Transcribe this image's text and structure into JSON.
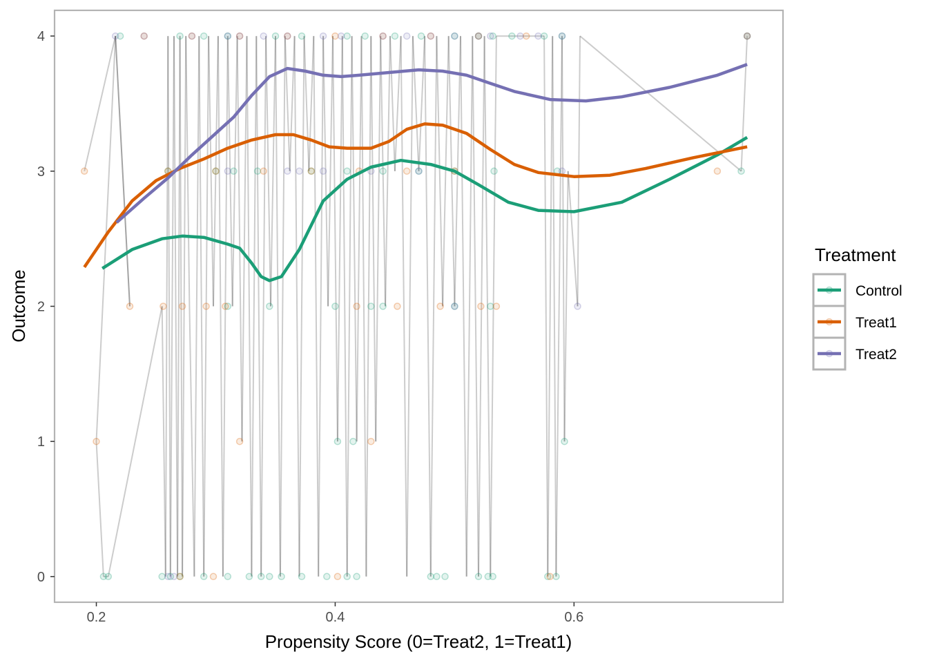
{
  "chart_data": {
    "type": "scatter",
    "title": "",
    "xlabel": "Propensity Score (0=Treat2, 1=Treat1)",
    "ylabel": "Outcome",
    "xlim": [
      0.165,
      0.775
    ],
    "ylim": [
      -0.19,
      4.19
    ],
    "x_ticks": [
      0.2,
      0.4,
      0.6
    ],
    "x_tick_labels": [
      "0.2",
      "0.4",
      "0.6"
    ],
    "y_ticks": [
      0,
      1,
      2,
      3,
      4
    ],
    "y_tick_labels": [
      "0",
      "1",
      "2",
      "3",
      "4"
    ],
    "grid": false,
    "legend": {
      "title": "Treatment",
      "position": "right",
      "entries": [
        "Control",
        "Treat1",
        "Treat2"
      ]
    },
    "colors": {
      "Control": "#1b9e77",
      "Treat1": "#d95f02",
      "Treat2": "#7570b3",
      "connector": "#000000",
      "frame": "#b3b3b3"
    },
    "series": [
      {
        "name": "Control",
        "smooth": [
          [
            0.205,
            2.28
          ],
          [
            0.23,
            2.42
          ],
          [
            0.255,
            2.5
          ],
          [
            0.272,
            2.52
          ],
          [
            0.29,
            2.51
          ],
          [
            0.31,
            2.46
          ],
          [
            0.32,
            2.43
          ],
          [
            0.33,
            2.32
          ],
          [
            0.338,
            2.22
          ],
          [
            0.345,
            2.19
          ],
          [
            0.355,
            2.22
          ],
          [
            0.37,
            2.42
          ],
          [
            0.39,
            2.78
          ],
          [
            0.41,
            2.94
          ],
          [
            0.43,
            3.03
          ],
          [
            0.455,
            3.08
          ],
          [
            0.48,
            3.05
          ],
          [
            0.5,
            3.0
          ],
          [
            0.52,
            2.9
          ],
          [
            0.545,
            2.77
          ],
          [
            0.57,
            2.71
          ],
          [
            0.6,
            2.7
          ],
          [
            0.64,
            2.77
          ],
          [
            0.68,
            2.94
          ],
          [
            0.72,
            3.12
          ],
          [
            0.745,
            3.25
          ]
        ],
        "points": [
          [
            0.206,
            0
          ],
          [
            0.21,
            0
          ],
          [
            0.255,
            0
          ],
          [
            0.262,
            0
          ],
          [
            0.27,
            0
          ],
          [
            0.29,
            0
          ],
          [
            0.31,
            0
          ],
          [
            0.328,
            0
          ],
          [
            0.338,
            0
          ],
          [
            0.345,
            0
          ],
          [
            0.355,
            0
          ],
          [
            0.372,
            0
          ],
          [
            0.393,
            0
          ],
          [
            0.41,
            0
          ],
          [
            0.418,
            0
          ],
          [
            0.48,
            0
          ],
          [
            0.485,
            0
          ],
          [
            0.492,
            0
          ],
          [
            0.52,
            0
          ],
          [
            0.528,
            0
          ],
          [
            0.532,
            0
          ],
          [
            0.578,
            0
          ],
          [
            0.585,
            0
          ],
          [
            0.22,
            4
          ],
          [
            0.27,
            4
          ],
          [
            0.29,
            4
          ],
          [
            0.31,
            4
          ],
          [
            0.35,
            4
          ],
          [
            0.372,
            4
          ],
          [
            0.41,
            4
          ],
          [
            0.425,
            4
          ],
          [
            0.45,
            4
          ],
          [
            0.472,
            4
          ],
          [
            0.5,
            4
          ],
          [
            0.52,
            4
          ],
          [
            0.532,
            4
          ],
          [
            0.548,
            4
          ],
          [
            0.575,
            4
          ],
          [
            0.59,
            4
          ],
          [
            0.745,
            4
          ],
          [
            0.26,
            3
          ],
          [
            0.3,
            3
          ],
          [
            0.315,
            3
          ],
          [
            0.335,
            3
          ],
          [
            0.38,
            3
          ],
          [
            0.41,
            3
          ],
          [
            0.44,
            3
          ],
          [
            0.47,
            3
          ],
          [
            0.5,
            3
          ],
          [
            0.533,
            3
          ],
          [
            0.586,
            3
          ],
          [
            0.74,
            3
          ],
          [
            0.31,
            2
          ],
          [
            0.345,
            2
          ],
          [
            0.4,
            2
          ],
          [
            0.43,
            2
          ],
          [
            0.44,
            2
          ],
          [
            0.5,
            2
          ],
          [
            0.53,
            2
          ],
          [
            0.402,
            1
          ],
          [
            0.415,
            1
          ],
          [
            0.592,
            1
          ]
        ]
      },
      {
        "name": "Treat1",
        "smooth": [
          [
            0.19,
            2.29
          ],
          [
            0.21,
            2.55
          ],
          [
            0.23,
            2.78
          ],
          [
            0.25,
            2.93
          ],
          [
            0.27,
            3.02
          ],
          [
            0.29,
            3.09
          ],
          [
            0.31,
            3.17
          ],
          [
            0.33,
            3.23
          ],
          [
            0.35,
            3.27
          ],
          [
            0.365,
            3.27
          ],
          [
            0.38,
            3.23
          ],
          [
            0.395,
            3.18
          ],
          [
            0.41,
            3.17
          ],
          [
            0.43,
            3.17
          ],
          [
            0.445,
            3.22
          ],
          [
            0.46,
            3.31
          ],
          [
            0.475,
            3.35
          ],
          [
            0.49,
            3.34
          ],
          [
            0.51,
            3.28
          ],
          [
            0.53,
            3.16
          ],
          [
            0.55,
            3.05
          ],
          [
            0.57,
            2.99
          ],
          [
            0.6,
            2.96
          ],
          [
            0.63,
            2.97
          ],
          [
            0.66,
            3.02
          ],
          [
            0.7,
            3.1
          ],
          [
            0.745,
            3.18
          ]
        ],
        "points": [
          [
            0.19,
            3
          ],
          [
            0.2,
            1
          ],
          [
            0.228,
            2
          ],
          [
            0.256,
            2
          ],
          [
            0.272,
            2
          ],
          [
            0.292,
            2
          ],
          [
            0.308,
            2
          ],
          [
            0.32,
            1
          ],
          [
            0.418,
            2
          ],
          [
            0.452,
            2
          ],
          [
            0.488,
            2
          ],
          [
            0.522,
            2
          ],
          [
            0.535,
            2
          ],
          [
            0.43,
            1
          ],
          [
            0.27,
            0
          ],
          [
            0.298,
            0
          ],
          [
            0.402,
            0
          ],
          [
            0.58,
            0
          ],
          [
            0.24,
            4
          ],
          [
            0.28,
            4
          ],
          [
            0.32,
            4
          ],
          [
            0.36,
            4
          ],
          [
            0.4,
            4
          ],
          [
            0.44,
            4
          ],
          [
            0.48,
            4
          ],
          [
            0.52,
            4
          ],
          [
            0.56,
            4
          ],
          [
            0.745,
            4
          ],
          [
            0.26,
            3
          ],
          [
            0.3,
            3
          ],
          [
            0.34,
            3
          ],
          [
            0.38,
            3
          ],
          [
            0.42,
            3
          ],
          [
            0.46,
            3
          ],
          [
            0.5,
            3
          ],
          [
            0.72,
            3
          ]
        ]
      },
      {
        "name": "Treat2",
        "smooth": [
          [
            0.217,
            2.62
          ],
          [
            0.24,
            2.8
          ],
          [
            0.26,
            2.95
          ],
          [
            0.28,
            3.12
          ],
          [
            0.3,
            3.28
          ],
          [
            0.315,
            3.4
          ],
          [
            0.33,
            3.56
          ],
          [
            0.345,
            3.7
          ],
          [
            0.36,
            3.76
          ],
          [
            0.375,
            3.74
          ],
          [
            0.39,
            3.71
          ],
          [
            0.405,
            3.7
          ],
          [
            0.42,
            3.71
          ],
          [
            0.445,
            3.73
          ],
          [
            0.47,
            3.75
          ],
          [
            0.49,
            3.74
          ],
          [
            0.51,
            3.71
          ],
          [
            0.53,
            3.65
          ],
          [
            0.55,
            3.59
          ],
          [
            0.58,
            3.53
          ],
          [
            0.61,
            3.52
          ],
          [
            0.64,
            3.55
          ],
          [
            0.68,
            3.62
          ],
          [
            0.72,
            3.71
          ],
          [
            0.745,
            3.79
          ]
        ],
        "points": [
          [
            0.216,
            4
          ],
          [
            0.26,
            0
          ],
          [
            0.265,
            0
          ],
          [
            0.24,
            4
          ],
          [
            0.28,
            4
          ],
          [
            0.31,
            4
          ],
          [
            0.32,
            4
          ],
          [
            0.34,
            4
          ],
          [
            0.36,
            4
          ],
          [
            0.39,
            4
          ],
          [
            0.405,
            4
          ],
          [
            0.44,
            4
          ],
          [
            0.46,
            4
          ],
          [
            0.48,
            4
          ],
          [
            0.5,
            4
          ],
          [
            0.52,
            4
          ],
          [
            0.53,
            4
          ],
          [
            0.555,
            4
          ],
          [
            0.57,
            4
          ],
          [
            0.59,
            4
          ],
          [
            0.31,
            3
          ],
          [
            0.36,
            3
          ],
          [
            0.37,
            3
          ],
          [
            0.39,
            3
          ],
          [
            0.43,
            3
          ],
          [
            0.47,
            3
          ],
          [
            0.59,
            3
          ],
          [
            0.5,
            2
          ],
          [
            0.603,
            2
          ],
          [
            0.745,
            4
          ]
        ]
      }
    ],
    "connector_path": [
      [
        0.19,
        3
      ],
      [
        0.216,
        4
      ],
      [
        0.228,
        2
      ],
      [
        0.216,
        4
      ],
      [
        0.2,
        1
      ],
      [
        0.206,
        0
      ],
      [
        0.21,
        0
      ],
      [
        0.255,
        2
      ],
      [
        0.258,
        0
      ],
      [
        0.26,
        4
      ],
      [
        0.262,
        0
      ],
      [
        0.265,
        4
      ],
      [
        0.268,
        0
      ],
      [
        0.27,
        4
      ],
      [
        0.272,
        0
      ],
      [
        0.275,
        4
      ],
      [
        0.278,
        2
      ],
      [
        0.282,
        0
      ],
      [
        0.286,
        4
      ],
      [
        0.29,
        0
      ],
      [
        0.294,
        4
      ],
      [
        0.298,
        2
      ],
      [
        0.302,
        4
      ],
      [
        0.306,
        0
      ],
      [
        0.31,
        4
      ],
      [
        0.314,
        2
      ],
      [
        0.318,
        4
      ],
      [
        0.322,
        1
      ],
      [
        0.326,
        4
      ],
      [
        0.33,
        0
      ],
      [
        0.334,
        4
      ],
      [
        0.338,
        0
      ],
      [
        0.342,
        4
      ],
      [
        0.346,
        2
      ],
      [
        0.35,
        4
      ],
      [
        0.354,
        0
      ],
      [
        0.358,
        4
      ],
      [
        0.362,
        3
      ],
      [
        0.366,
        4
      ],
      [
        0.37,
        0
      ],
      [
        0.374,
        4
      ],
      [
        0.378,
        3
      ],
      [
        0.382,
        4
      ],
      [
        0.386,
        0
      ],
      [
        0.39,
        4
      ],
      [
        0.394,
        2
      ],
      [
        0.398,
        4
      ],
      [
        0.402,
        1
      ],
      [
        0.406,
        4
      ],
      [
        0.41,
        0
      ],
      [
        0.414,
        4
      ],
      [
        0.418,
        1
      ],
      [
        0.422,
        4
      ],
      [
        0.426,
        0
      ],
      [
        0.43,
        4
      ],
      [
        0.434,
        1
      ],
      [
        0.438,
        4
      ],
      [
        0.442,
        2
      ],
      [
        0.446,
        4
      ],
      [
        0.45,
        3
      ],
      [
        0.455,
        4
      ],
      [
        0.46,
        0
      ],
      [
        0.465,
        4
      ],
      [
        0.47,
        3
      ],
      [
        0.475,
        4
      ],
      [
        0.48,
        0
      ],
      [
        0.485,
        4
      ],
      [
        0.49,
        2
      ],
      [
        0.495,
        4
      ],
      [
        0.5,
        2
      ],
      [
        0.505,
        4
      ],
      [
        0.51,
        0
      ],
      [
        0.515,
        4
      ],
      [
        0.52,
        0
      ],
      [
        0.525,
        4
      ],
      [
        0.53,
        0
      ],
      [
        0.535,
        4
      ],
      [
        0.555,
        4
      ],
      [
        0.575,
        4
      ],
      [
        0.578,
        0
      ],
      [
        0.582,
        4
      ],
      [
        0.585,
        0
      ],
      [
        0.59,
        4
      ],
      [
        0.592,
        1
      ],
      [
        0.595,
        3
      ],
      [
        0.603,
        2
      ],
      [
        0.605,
        4
      ],
      [
        0.74,
        3
      ],
      [
        0.745,
        4
      ]
    ]
  }
}
